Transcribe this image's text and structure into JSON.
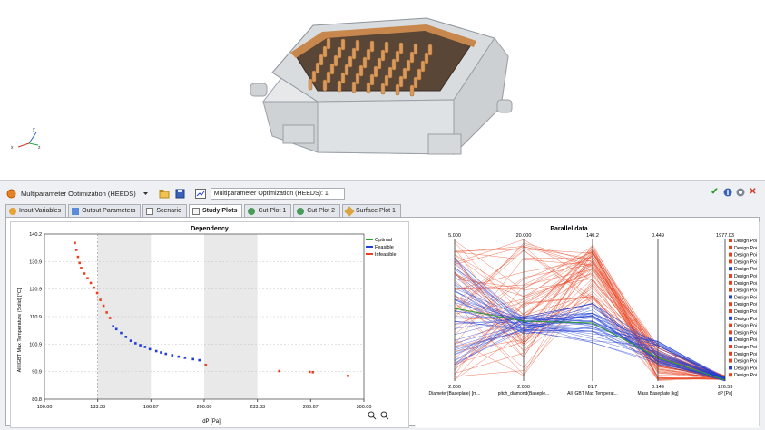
{
  "toolbar": {
    "study_dropdown": "Multiparameter Optimization (HEEDS)",
    "study_name_field": "Multiparameter Optimization (HEEDS): 1"
  },
  "tabs": [
    {
      "label": "Input Variables"
    },
    {
      "label": "Output Parameters"
    },
    {
      "label": "Scenario"
    },
    {
      "label": "Study Plots"
    },
    {
      "label": "Cut Plot 1"
    },
    {
      "label": "Cut Plot 2"
    },
    {
      "label": "Surface Plot 1"
    }
  ],
  "colors": {
    "optimal": "#2ca02c",
    "feasible": "#1f3fd6",
    "infeasible": "#e8411f",
    "accent": "#3a7bd5"
  },
  "chart_data": [
    {
      "type": "scatter",
      "title": "Dependency",
      "xlabel": "dP [Pa]",
      "ylabel": "All IGBT Max Temperature (Solid) [°C]",
      "xlim": [
        100,
        300
      ],
      "ylim": [
        80.8,
        140.2
      ],
      "x_ticks": [
        "100.00",
        "133.33",
        "166.67",
        "200.00",
        "233.33",
        "266.67",
        "300.00"
      ],
      "y_ticks": [
        "140.2",
        "130.9",
        "120.9",
        "110.9",
        "100.9",
        "90.9",
        "80.8"
      ],
      "legend_position": "top-right",
      "series": [
        {
          "name": "Optimal",
          "color": "#2ca02c",
          "points": []
        },
        {
          "name": "Feasible",
          "color": "#1f3fd6",
          "points": [
            [
              143,
              107
            ],
            [
              145,
              106
            ],
            [
              148,
              104.6
            ],
            [
              151,
              103.2
            ],
            [
              154,
              101.8
            ],
            [
              157,
              100.9
            ],
            [
              160,
              100.2
            ],
            [
              163,
              99.6
            ],
            [
              166,
              98.8
            ],
            [
              170,
              98.1
            ],
            [
              173,
              97.6
            ],
            [
              176,
              97.1
            ],
            [
              180,
              96.6
            ],
            [
              184,
              96.1
            ],
            [
              188,
              95.7
            ],
            [
              193,
              95.2
            ],
            [
              197,
              94.8
            ]
          ]
        },
        {
          "name": "Infeasible",
          "color": "#e8411f",
          "points": [
            [
              119,
              137
            ],
            [
              120,
              134.5
            ],
            [
              121,
              132
            ],
            [
              122,
              129.8
            ],
            [
              123,
              128
            ],
            [
              125,
              126
            ],
            [
              127,
              124.3
            ],
            [
              129,
              122.6
            ],
            [
              131,
              120.9
            ],
            [
              133,
              119
            ],
            [
              135,
              116.5
            ],
            [
              137,
              114.4
            ],
            [
              139,
              112
            ],
            [
              141,
              110
            ],
            [
              201,
              93.1
            ],
            [
              247,
              90.9
            ],
            [
              266,
              90.6
            ],
            [
              268,
              90.5
            ],
            [
              290,
              89.2
            ]
          ]
        }
      ]
    },
    {
      "type": "parallel",
      "title": "Parallel data",
      "axes": [
        {
          "label": "Diameter(Baseplate) [m...",
          "max": "5.000",
          "min": "2.000"
        },
        {
          "label": "pitch_diamond(Baseple...",
          "max": "20.000",
          "min": "2.000"
        },
        {
          "label": "All IGBT Max Temperat...",
          "max": "140.2",
          "min": "81.7"
        },
        {
          "label": "Mass Baseplate [kg]",
          "max": "0.449",
          "min": "0.149"
        },
        {
          "label": "dP [Pa]",
          "max": "1977.03",
          "min": "126.53"
        }
      ],
      "legend_entries": [
        "Design Poi",
        "Design Poi",
        "Design Poi",
        "Design Poi",
        "Design Poi",
        "Design Poi",
        "Design Poi",
        "Design Poi",
        "Design Poi",
        "Design Poi",
        "Design Poi",
        "Design Poi",
        "Design Poi",
        "Design Poi",
        "Design Poi",
        "Design Poi",
        "Design Poi",
        "Design Poi",
        "Design Poi",
        "Design Poi"
      ],
      "legend_colors": [
        "#e8411f",
        "#e8411f",
        "#e8411f",
        "#e8411f",
        "#1f3fd6",
        "#e8411f",
        "#e8411f",
        "#e8411f",
        "#1f3fd6",
        "#e8411f",
        "#e8411f",
        "#1f3fd6",
        "#e8411f",
        "#e8411f",
        "#1f3fd6",
        "#e8411f",
        "#e8411f",
        "#e8411f",
        "#1f3fd6",
        "#e8411f"
      ]
    }
  ]
}
